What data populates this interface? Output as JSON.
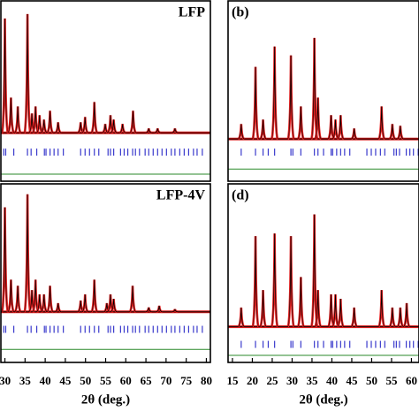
{
  "chart_data": [
    {
      "type": "line",
      "label": "LFP",
      "xlim": [
        29,
        81
      ],
      "ylim": [
        -42,
        136
      ],
      "baseline": 5.8,
      "reflections_level": -13.3,
      "difference_level": -35,
      "x": [
        30.0,
        31.5,
        33.2,
        35.6,
        36.7,
        37.6,
        38.6,
        39.7,
        41.2,
        43.2,
        48.8,
        49.9,
        52.2,
        54.9,
        56.2,
        57.0,
        59.2,
        61.8,
        65.7,
        67.9,
        72.2
      ],
      "values": [
        118.6,
        40.5,
        31.8,
        123,
        24.9,
        31.8,
        23.2,
        18.8,
        27.5,
        16.2,
        16.2,
        21.4,
        36.2,
        14.5,
        23.2,
        18.8,
        14.5,
        27.5,
        10.1,
        10.1,
        10.1
      ],
      "reflections": [
        29.7,
        30.2,
        32.2,
        35.6,
        36.5,
        37.9,
        39.8,
        40.2,
        41.2,
        42.2,
        43.2,
        44.5,
        48.8,
        49.9,
        51.0,
        52.2,
        53.3,
        55.6,
        56.2,
        57.0,
        58.7,
        59.6,
        60.5,
        61.7,
        62.4,
        63.4,
        64.8,
        65.7,
        66.8,
        67.9,
        69.0,
        70.1,
        71.3,
        72.2,
        73.4,
        74.5,
        75.6,
        76.8,
        77.7,
        79.0
      ]
    },
    {
      "type": "line",
      "label": "(b)",
      "xlim": [
        13.9,
        61.9
      ],
      "ylim": [
        -42,
        136
      ],
      "baseline": -0.3,
      "reflections_level": -13.3,
      "difference_level": -30,
      "x": [
        17.2,
        20.8,
        22.7,
        25.6,
        29.7,
        32.2,
        35.6,
        36.5,
        39.8,
        40.9,
        42.2,
        45.6,
        52.5,
        55.2,
        57.2
      ],
      "values": [
        14.5,
        70.9,
        18.8,
        90.9,
        82.2,
        31.8,
        99.5,
        40.5,
        23.2,
        18.8,
        23.2,
        10.1,
        31.8,
        14.5,
        12.7
      ],
      "reflections": [
        17.2,
        20.8,
        22.7,
        24.0,
        25.6,
        29.7,
        30.2,
        32.2,
        35.6,
        36.5,
        37.9,
        39.8,
        40.2,
        41.2,
        42.2,
        43.2,
        44.5,
        48.8,
        49.9,
        51.0,
        52.2,
        53.3,
        55.6,
        56.2,
        57.0,
        58.7,
        59.6,
        60.5,
        61.7
      ]
    },
    {
      "type": "line",
      "label": "LFP-4V",
      "xlabel": "2θ (deg.)",
      "xlim": [
        29,
        81
      ],
      "ylim": [
        -42,
        136
      ],
      "xticks": [
        30,
        35,
        40,
        45,
        50,
        55,
        60,
        65,
        70,
        75,
        80
      ],
      "baseline": 8.4,
      "reflections_level": -9,
      "difference_level": -29,
      "x": [
        30.0,
        31.5,
        33.2,
        35.6,
        36.7,
        37.6,
        38.6,
        39.7,
        41.2,
        43.2,
        48.8,
        49.9,
        52.2,
        55.3,
        56.2,
        57.0,
        61.7,
        65.7,
        68.3,
        72.2
      ],
      "values": [
        112.6,
        40.5,
        34.4,
        125.6,
        30.1,
        40.5,
        25.8,
        25.8,
        34.4,
        17.1,
        19.7,
        25.8,
        40.5,
        17.1,
        25.8,
        21.4,
        34.4,
        12.8,
        14.5,
        11
      ],
      "reflections": [
        29.7,
        30.2,
        32.2,
        35.6,
        36.5,
        37.9,
        39.8,
        40.2,
        41.2,
        42.2,
        43.2,
        44.5,
        48.8,
        49.9,
        51.0,
        52.2,
        53.3,
        55.6,
        56.2,
        57.0,
        58.7,
        59.6,
        60.5,
        61.7,
        62.4,
        63.4,
        64.8,
        65.7,
        66.8,
        67.9,
        69.0,
        70.1,
        71.3,
        72.2,
        73.4,
        74.5,
        75.6,
        76.8,
        77.7,
        79.0
      ]
    },
    {
      "type": "line",
      "label": "(d)",
      "xlabel": "2θ (deg.)",
      "xlim": [
        13.9,
        61.9
      ],
      "ylim": [
        -42,
        136
      ],
      "xticks": [
        15,
        20,
        25,
        30,
        35,
        40,
        45,
        50,
        55,
        60
      ],
      "baseline": -6.4,
      "reflections_level": -24,
      "difference_level": -35,
      "x": [
        17.2,
        20.8,
        22.7,
        25.6,
        29.7,
        32.2,
        35.6,
        36.5,
        39.8,
        40.9,
        42.2,
        45.6,
        52.5,
        55.2,
        57.2,
        58.8
      ],
      "values": [
        12.7,
        83.9,
        30.1,
        86.5,
        83.9,
        43.1,
        105.6,
        30.1,
        25.8,
        25.8,
        21.4,
        12.7,
        30.1,
        12.7,
        12.7,
        17.1
      ],
      "reflections": [
        17.2,
        20.8,
        22.7,
        24.0,
        25.6,
        29.7,
        30.2,
        32.2,
        35.6,
        36.5,
        37.9,
        39.8,
        40.2,
        41.2,
        42.2,
        43.2,
        44.5,
        48.8,
        49.9,
        51.0,
        52.2,
        53.3,
        55.6,
        56.2,
        57.0,
        58.7,
        59.6,
        60.5,
        61.7
      ]
    }
  ]
}
